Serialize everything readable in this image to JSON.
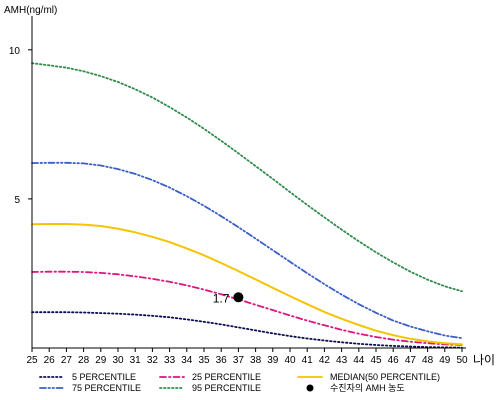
{
  "chart_data": {
    "type": "line",
    "title": "",
    "xlabel": "나이",
    "ylabel": "AMH(ng/ml)",
    "x": [
      25,
      26,
      27,
      28,
      29,
      30,
      31,
      32,
      33,
      34,
      35,
      36,
      37,
      38,
      39,
      40,
      41,
      42,
      43,
      44,
      45,
      46,
      47,
      48,
      49,
      50
    ],
    "x_tick_labels": [
      "25",
      "26",
      "27",
      "28",
      "29",
      "30",
      "31",
      "32",
      "33",
      "34",
      "35",
      "36",
      "37",
      "38",
      "39",
      "40",
      "41",
      "42",
      "43",
      "44",
      "45",
      "46",
      "47",
      "48",
      "49",
      "50"
    ],
    "xlim": [
      25,
      50
    ],
    "ylim": [
      0,
      11
    ],
    "y_ticks": [
      5,
      10
    ],
    "y_tick_labels": [
      "5",
      "10"
    ],
    "grid": false,
    "legend_position": "bottom",
    "series": [
      {
        "name": "5 PERCENTILE",
        "color": "#0b0b55",
        "style": "dotted",
        "values": [
          1.2,
          1.2,
          1.2,
          1.19,
          1.17,
          1.15,
          1.12,
          1.08,
          1.03,
          0.96,
          0.88,
          0.79,
          0.69,
          0.59,
          0.49,
          0.4,
          0.32,
          0.25,
          0.19,
          0.14,
          0.1,
          0.07,
          0.05,
          0.03,
          0.02,
          0.01
        ]
      },
      {
        "name": "25 PERCENTILE",
        "color": "#e0147e",
        "style": "dashdot",
        "values": [
          2.55,
          2.56,
          2.56,
          2.55,
          2.52,
          2.47,
          2.4,
          2.32,
          2.22,
          2.1,
          1.96,
          1.8,
          1.63,
          1.45,
          1.27,
          1.09,
          0.92,
          0.76,
          0.61,
          0.48,
          0.37,
          0.28,
          0.21,
          0.16,
          0.12,
          0.1
        ]
      },
      {
        "name": "MEDIAN(50 PERCENTILE)",
        "color": "#f5c400",
        "style": "solid",
        "values": [
          4.15,
          4.16,
          4.16,
          4.14,
          4.09,
          4.0,
          3.88,
          3.73,
          3.55,
          3.34,
          3.11,
          2.85,
          2.58,
          2.3,
          2.02,
          1.74,
          1.47,
          1.21,
          0.98,
          0.77,
          0.58,
          0.43,
          0.31,
          0.22,
          0.16,
          0.12
        ]
      },
      {
        "name": "75 PERCENTILE",
        "color": "#3a5ec8",
        "style": "dashdotdot",
        "values": [
          6.2,
          6.21,
          6.21,
          6.19,
          6.12,
          6.0,
          5.84,
          5.63,
          5.38,
          5.09,
          4.77,
          4.42,
          4.05,
          3.67,
          3.28,
          2.89,
          2.51,
          2.14,
          1.79,
          1.47,
          1.18,
          0.92,
          0.72,
          0.56,
          0.42,
          0.33
        ]
      },
      {
        "name": "95 PERCENTILE",
        "color": "#2e8b4a",
        "style": "dotted",
        "values": [
          9.55,
          9.48,
          9.4,
          9.28,
          9.12,
          8.92,
          8.68,
          8.4,
          8.08,
          7.73,
          7.35,
          6.95,
          6.53,
          6.1,
          5.67,
          5.23,
          4.8,
          4.38,
          3.97,
          3.58,
          3.21,
          2.87,
          2.56,
          2.29,
          2.07,
          1.9
        ]
      }
    ],
    "point": {
      "name": "수진자의 AMH 농도",
      "x": 37,
      "y": 1.7,
      "label": "1.7",
      "color": "#000000"
    }
  }
}
